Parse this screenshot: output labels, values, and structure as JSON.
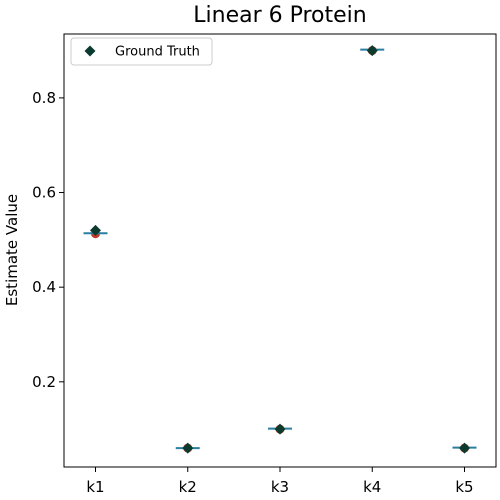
{
  "chart_data": {
    "type": "scatter",
    "title": "Linear 6 Protein",
    "xlabel": "",
    "ylabel": "Estimate Value",
    "categories": [
      "k1",
      "k2",
      "k3",
      "k4",
      "k5"
    ],
    "ylim": [
      0.02,
      0.935
    ],
    "yticks": [
      0.2,
      0.4,
      0.6,
      0.8
    ],
    "ytick_labels": [
      "0.2",
      "0.4",
      "0.6",
      "0.8"
    ],
    "grid": false,
    "legend_position": "top-left",
    "series": [
      {
        "name": "Ground Truth",
        "marker": "diamond",
        "color": "#0b3b2e",
        "values": [
          0.52,
          0.06,
          0.1,
          0.9,
          0.06
        ]
      },
      {
        "marker": "circle",
        "color": "#c0392b",
        "values": [
          0.513,
          0.06,
          0.1,
          0.9,
          0.06
        ]
      },
      {
        "marker": "hline",
        "color": "#2a7ea0",
        "values": [
          0.514,
          0.06,
          0.101,
          0.902,
          0.061
        ]
      }
    ]
  }
}
